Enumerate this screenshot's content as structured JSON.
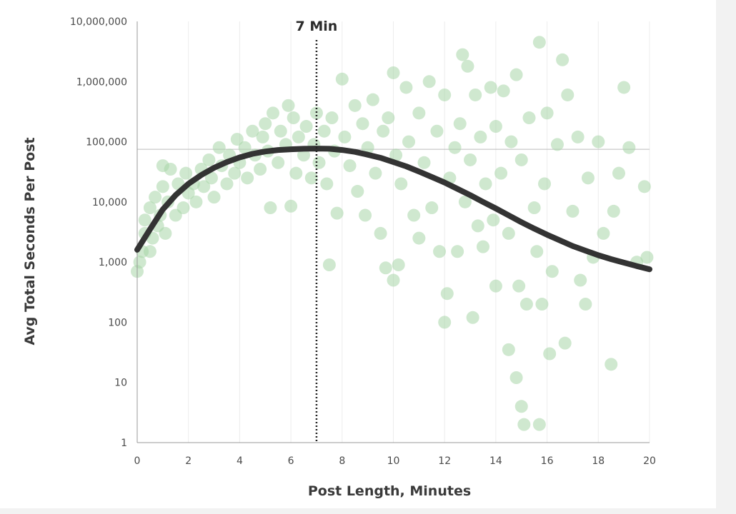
{
  "chart_data": {
    "type": "scatter",
    "title": "",
    "xlabel": "Post Length, Minutes",
    "ylabel": "Avg Total Seconds Per Post",
    "x_ticks": [
      "0",
      "2",
      "4",
      "6",
      "8",
      "10",
      "12",
      "14",
      "16",
      "18",
      "20"
    ],
    "y_ticks": [
      "1",
      "10",
      "100",
      "1,000",
      "10,000",
      "100,000",
      "1,000,000",
      "10,000,000"
    ],
    "xlim": [
      0,
      20
    ],
    "ylim": [
      1,
      10000000
    ],
    "y_scale": "log",
    "grid": "vertical only",
    "annotation": {
      "label": "7 Min",
      "x": 7
    },
    "reference_line_y": 75000,
    "scatter_color": "#a8d5a8",
    "curve_color": "#333333",
    "series": [
      {
        "type": "scatter",
        "points": [
          [
            0.0,
            700
          ],
          [
            0.1,
            1000
          ],
          [
            0.2,
            1500
          ],
          [
            0.3,
            3000
          ],
          [
            0.3,
            5000
          ],
          [
            0.5,
            1500
          ],
          [
            0.5,
            8000
          ],
          [
            0.6,
            2500
          ],
          [
            0.7,
            12000
          ],
          [
            0.8,
            4000
          ],
          [
            0.9,
            6000
          ],
          [
            1.0,
            18000
          ],
          [
            1.0,
            40000
          ],
          [
            1.1,
            3000
          ],
          [
            1.2,
            10000
          ],
          [
            1.3,
            35000
          ],
          [
            1.5,
            6000
          ],
          [
            1.6,
            20000
          ],
          [
            1.8,
            8000
          ],
          [
            1.9,
            30000
          ],
          [
            2.0,
            14000
          ],
          [
            2.2,
            20000
          ],
          [
            2.3,
            10000
          ],
          [
            2.5,
            35000
          ],
          [
            2.6,
            18000
          ],
          [
            2.8,
            50000
          ],
          [
            2.9,
            25000
          ],
          [
            3.0,
            12000
          ],
          [
            3.2,
            80000
          ],
          [
            3.3,
            40000
          ],
          [
            3.5,
            20000
          ],
          [
            3.6,
            60000
          ],
          [
            3.8,
            30000
          ],
          [
            3.9,
            110000
          ],
          [
            4.0,
            45000
          ],
          [
            4.2,
            80000
          ],
          [
            4.3,
            25000
          ],
          [
            4.5,
            150000
          ],
          [
            4.6,
            60000
          ],
          [
            4.8,
            35000
          ],
          [
            4.9,
            120000
          ],
          [
            5.0,
            200000
          ],
          [
            5.1,
            70000
          ],
          [
            5.2,
            8000
          ],
          [
            5.3,
            300000
          ],
          [
            5.5,
            45000
          ],
          [
            5.6,
            150000
          ],
          [
            5.8,
            90000
          ],
          [
            5.9,
            400000
          ],
          [
            6.0,
            8500
          ],
          [
            6.1,
            250000
          ],
          [
            6.2,
            30000
          ],
          [
            6.3,
            120000
          ],
          [
            6.5,
            60000
          ],
          [
            6.6,
            180000
          ],
          [
            6.8,
            25000
          ],
          [
            6.9,
            90000
          ],
          [
            7.0,
            300000
          ],
          [
            7.1,
            45000
          ],
          [
            7.3,
            150000
          ],
          [
            7.4,
            20000
          ],
          [
            7.5,
            900
          ],
          [
            7.6,
            250000
          ],
          [
            7.7,
            70000
          ],
          [
            7.8,
            6500
          ],
          [
            8.0,
            1100000
          ],
          [
            8.1,
            120000
          ],
          [
            8.3,
            40000
          ],
          [
            8.5,
            400000
          ],
          [
            8.6,
            15000
          ],
          [
            8.8,
            200000
          ],
          [
            8.9,
            6000
          ],
          [
            9.0,
            80000
          ],
          [
            9.2,
            500000
          ],
          [
            9.3,
            30000
          ],
          [
            9.5,
            3000
          ],
          [
            9.6,
            150000
          ],
          [
            9.7,
            800
          ],
          [
            9.8,
            250000
          ],
          [
            10.0,
            1400000
          ],
          [
            10.0,
            500
          ],
          [
            10.1,
            60000
          ],
          [
            10.2,
            900
          ],
          [
            10.3,
            20000
          ],
          [
            10.5,
            800000
          ],
          [
            10.6,
            100000
          ],
          [
            10.8,
            6000
          ],
          [
            11.0,
            300000
          ],
          [
            11.0,
            2500
          ],
          [
            11.2,
            45000
          ],
          [
            11.4,
            1000000
          ],
          [
            11.5,
            8000
          ],
          [
            11.7,
            150000
          ],
          [
            11.8,
            1500
          ],
          [
            12.0,
            600000
          ],
          [
            12.0,
            100
          ],
          [
            12.1,
            300
          ],
          [
            12.2,
            25000
          ],
          [
            12.4,
            80000
          ],
          [
            12.5,
            1500
          ],
          [
            12.6,
            200000
          ],
          [
            12.7,
            2800000
          ],
          [
            12.8,
            10000
          ],
          [
            12.9,
            1800000
          ],
          [
            13.0,
            50000
          ],
          [
            13.1,
            120
          ],
          [
            13.2,
            600000
          ],
          [
            13.3,
            4000
          ],
          [
            13.4,
            120000
          ],
          [
            13.5,
            1800
          ],
          [
            13.6,
            20000
          ],
          [
            13.8,
            800000
          ],
          [
            13.9,
            5000
          ],
          [
            14.0,
            180000
          ],
          [
            14.0,
            400
          ],
          [
            14.2,
            30000
          ],
          [
            14.3,
            700000
          ],
          [
            14.5,
            3000
          ],
          [
            14.5,
            35
          ],
          [
            14.6,
            100000
          ],
          [
            14.8,
            1300000
          ],
          [
            14.8,
            12
          ],
          [
            14.9,
            400
          ],
          [
            15.0,
            4
          ],
          [
            15.0,
            50000
          ],
          [
            15.1,
            2
          ],
          [
            15.2,
            200
          ],
          [
            15.3,
            250000
          ],
          [
            15.5,
            8000
          ],
          [
            15.6,
            1500
          ],
          [
            15.7,
            4500000
          ],
          [
            15.7,
            2
          ],
          [
            15.8,
            200
          ],
          [
            15.9,
            20000
          ],
          [
            16.0,
            300000
          ],
          [
            16.1,
            30
          ],
          [
            16.2,
            700
          ],
          [
            16.4,
            90000
          ],
          [
            16.6,
            2300000
          ],
          [
            16.7,
            45
          ],
          [
            16.8,
            600000
          ],
          [
            17.0,
            7000
          ],
          [
            17.2,
            120000
          ],
          [
            17.3,
            500
          ],
          [
            17.5,
            200
          ],
          [
            17.6,
            25000
          ],
          [
            17.8,
            1200
          ],
          [
            18.0,
            100000
          ],
          [
            18.2,
            3000
          ],
          [
            18.5,
            20
          ],
          [
            18.6,
            7000
          ],
          [
            18.8,
            30000
          ],
          [
            19.0,
            800000
          ],
          [
            19.2,
            80000
          ],
          [
            19.5,
            1000
          ],
          [
            19.8,
            18000
          ],
          [
            19.9,
            1200
          ]
        ]
      },
      {
        "type": "line",
        "points": [
          [
            0,
            1600
          ],
          [
            0.5,
            3500
          ],
          [
            1,
            7500
          ],
          [
            1.5,
            13000
          ],
          [
            2,
            20000
          ],
          [
            2.5,
            28000
          ],
          [
            3,
            37000
          ],
          [
            3.5,
            46000
          ],
          [
            4,
            55000
          ],
          [
            4.5,
            63000
          ],
          [
            5,
            69000
          ],
          [
            5.5,
            73000
          ],
          [
            6,
            75000
          ],
          [
            6.5,
            76500
          ],
          [
            7,
            77000
          ],
          [
            7.5,
            76500
          ],
          [
            8,
            73000
          ],
          [
            8.5,
            68000
          ],
          [
            9,
            61000
          ],
          [
            9.5,
            54000
          ],
          [
            10,
            46000
          ],
          [
            10.5,
            39000
          ],
          [
            11,
            32000
          ],
          [
            11.5,
            26000
          ],
          [
            12,
            21000
          ],
          [
            12.5,
            16500
          ],
          [
            13,
            13000
          ],
          [
            13.5,
            10000
          ],
          [
            14,
            7800
          ],
          [
            14.5,
            6000
          ],
          [
            15,
            4600
          ],
          [
            15.5,
            3600
          ],
          [
            16,
            2850
          ],
          [
            16.5,
            2300
          ],
          [
            17,
            1850
          ],
          [
            17.5,
            1550
          ],
          [
            18,
            1300
          ],
          [
            18.5,
            1120
          ],
          [
            19,
            980
          ],
          [
            19.5,
            860
          ],
          [
            20,
            760
          ]
        ]
      }
    ]
  }
}
